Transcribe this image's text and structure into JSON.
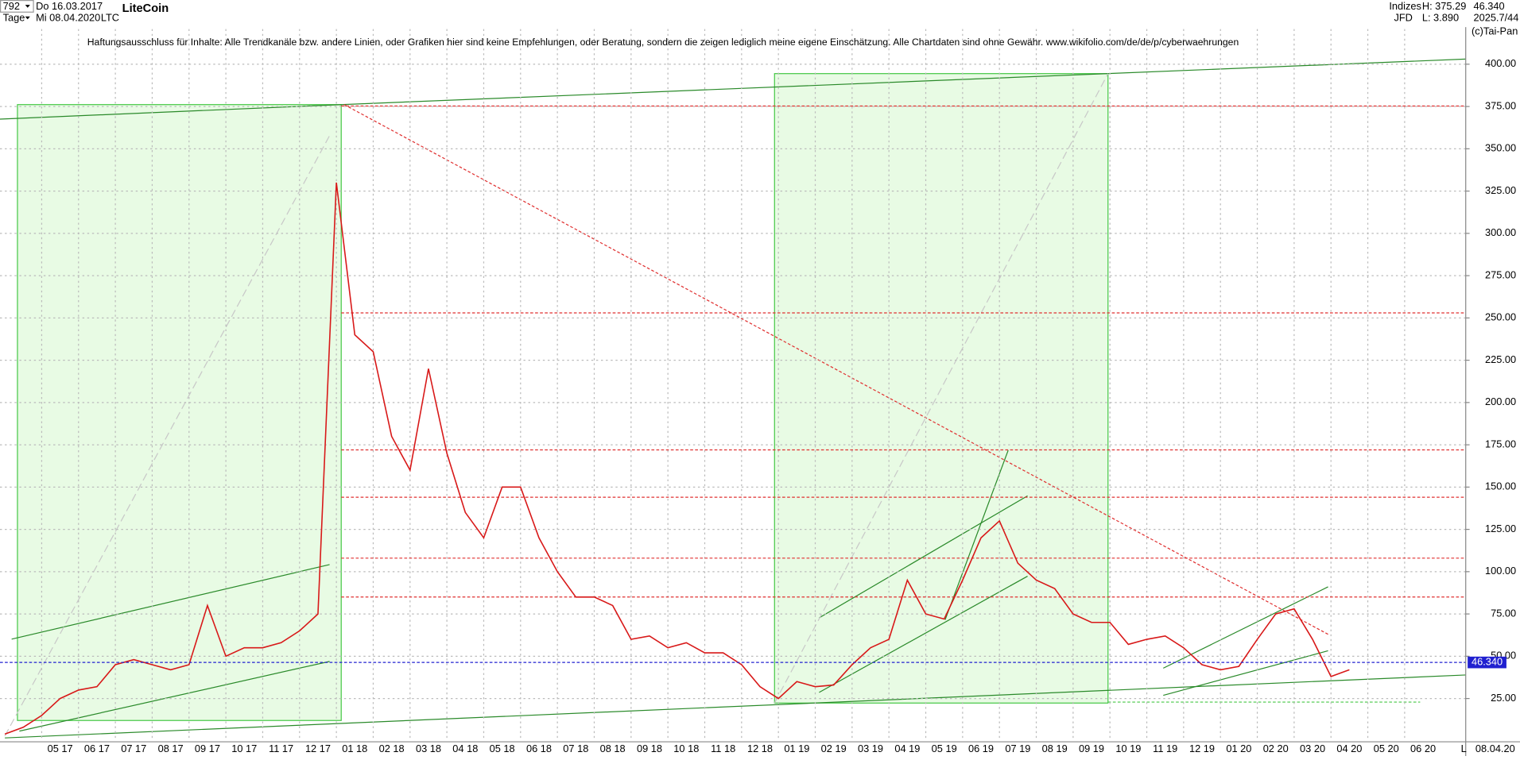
{
  "header": {
    "count": "792",
    "start_date": "Do 16.03.2017",
    "period": "Tage",
    "end_date": "Mi 08.04.2020",
    "symbol": "LTC",
    "name": "LiteCoin",
    "disclaimer": "Haftungsausschluss für Inhalte: Alle Trendkanäle bzw. andere Linien, oder Grafiken hier sind keine Empfehlungen, oder Beratung, sondern die zeigen lediglich meine eigene Einschätzung. Alle Chartdaten sind ohne Gewähr.  www.wikifolio.com/de/de/p/cyberwaehrungen",
    "market": "Indizes",
    "broker": "JFD",
    "high": "H: 375.29",
    "low": "L: 3.890",
    "last": "46.340",
    "version": "2025.7/44",
    "copyright": "(c)Tai-Pan",
    "axis_date": "08.04.20",
    "axis_mode": "L"
  },
  "chart_data": {
    "type": "line",
    "color": "#d81818",
    "grid": true,
    "categories": [
      null,
      null,
      null,
      "05 17",
      null,
      "06 17",
      null,
      "07 17",
      null,
      "08 17",
      null,
      "09 17",
      null,
      "10 17",
      null,
      "11 17",
      null,
      "12 17",
      null,
      "01 18",
      null,
      "02 18",
      null,
      "03 18",
      null,
      "04 18",
      null,
      "05 18",
      null,
      "06 18",
      null,
      "07 18",
      null,
      "08 18",
      null,
      "09 18",
      null,
      "10 18",
      null,
      "11 18",
      null,
      "12 18",
      null,
      "01 19",
      null,
      "02 19",
      null,
      "03 19",
      null,
      "04 19",
      null,
      "05 19",
      null,
      "06 19",
      null,
      "07 19",
      null,
      "08 19",
      null,
      "09 19",
      null,
      "10 19",
      null,
      "11 19",
      null,
      "12 19",
      null,
      "01 20",
      null,
      "02 20",
      null,
      "03 20",
      null,
      "04 20",
      null,
      "05 20",
      null,
      "06 20"
    ],
    "values": [
      4,
      8,
      15,
      25,
      30,
      32,
      45,
      48,
      45,
      42,
      45,
      80,
      50,
      55,
      55,
      58,
      65,
      75,
      330,
      240,
      230,
      180,
      160,
      220,
      170,
      135,
      120,
      150,
      150,
      120,
      100,
      85,
      85,
      80,
      60,
      62,
      55,
      58,
      52,
      52,
      45,
      32,
      25,
      35,
      32,
      33,
      45,
      55,
      60,
      95,
      75,
      72,
      95,
      120,
      130,
      105,
      95,
      90,
      75,
      70,
      70,
      57,
      60,
      62,
      55,
      45,
      42,
      44,
      60,
      75,
      78,
      60,
      38,
      42,
      null,
      null,
      null,
      null
    ],
    "ylim": [
      0,
      426.5
    ],
    "yticks": [
      {
        "value": 25,
        "label": "25.00"
      },
      {
        "value": 50,
        "label": "50.00"
      },
      {
        "value": 75,
        "label": "75.00"
      },
      {
        "value": 100,
        "label": "100.00"
      },
      {
        "value": 125,
        "label": "125.00"
      },
      {
        "value": 150,
        "label": "150.00"
      },
      {
        "value": 175,
        "label": "175.00"
      },
      {
        "value": 200,
        "label": "200.00"
      },
      {
        "value": 225,
        "label": "225.00"
      },
      {
        "value": 250,
        "label": "250.00"
      },
      {
        "value": 275,
        "label": "275.00"
      },
      {
        "value": 300,
        "label": "300.00"
      },
      {
        "value": 325,
        "label": "325.00"
      },
      {
        "value": 350,
        "label": "350.00"
      },
      {
        "value": 375,
        "label": "375.00"
      },
      {
        "value": 400,
        "label": "400.00"
      }
    ],
    "hlines": [
      {
        "value": 375.29,
        "color": "#e03030"
      },
      {
        "value": 253,
        "color": "#e03030"
      },
      {
        "value": 172,
        "color": "#e03030"
      },
      {
        "value": 144,
        "color": "#e03030"
      },
      {
        "value": 108,
        "color": "#e03030"
      },
      {
        "value": 85,
        "color": "#e03030"
      }
    ],
    "last_value": {
      "value": 46.34,
      "label": "46.340",
      "color": "#2020d0"
    }
  }
}
